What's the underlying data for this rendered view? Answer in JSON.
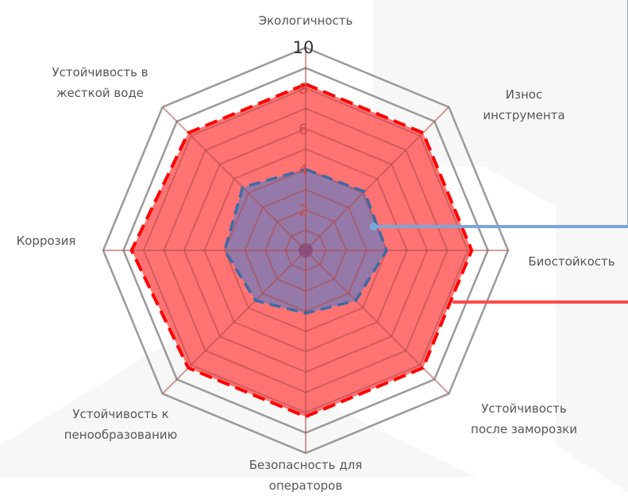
{
  "chart_data": {
    "type": "radar",
    "title": "",
    "categories": [
      "Экологичность",
      "Износ инструмента",
      "Биостойкость",
      "Устойчивость после заморозки",
      "Безопасность для операторов",
      "Устойчивость к пенообразованию",
      "Коррозия",
      "Устойчивость в жесткой воде"
    ],
    "rlim": [
      0,
      10
    ],
    "ticks": [
      2,
      4,
      6,
      8,
      10
    ],
    "grid": true,
    "series": [
      {
        "values": [
          8.2,
          8.2,
          8.2,
          8.2,
          8.2,
          8.2,
          8.6,
          8.2
        ],
        "color": "#ff0000",
        "fill": "#ff5a5a",
        "dashed": true
      },
      {
        "values": [
          4.0,
          4.1,
          4.0,
          3.5,
          3.1,
          3.5,
          4.0,
          4.4
        ],
        "color": "#3e6aa3",
        "fill": "#7a7ab5",
        "dashed": true
      }
    ],
    "label_lines": [
      [
        "Экологичность"
      ],
      [
        "Износ",
        "инструмента"
      ],
      [
        "Биостойкость"
      ],
      [
        "Устойчивость",
        "после заморозки"
      ],
      [
        "Безопасность для",
        "операторов"
      ],
      [
        "Устойчивость к",
        "пенообразованию"
      ],
      [
        "Коррозия"
      ],
      [
        "Устойчивость в",
        "жесткой воде"
      ]
    ]
  },
  "colors": {
    "background_watermark": "#f2f2f2",
    "grid_outer": "#9a9a9a",
    "grid_inner": "#b04848",
    "connector_blue": "#7ba7d8",
    "connector_red": "#ff4a4a"
  }
}
